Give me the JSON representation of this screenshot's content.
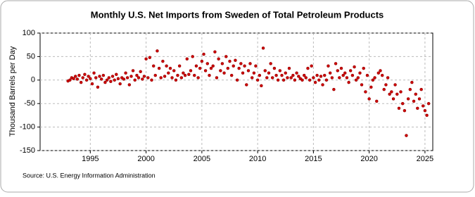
{
  "chart_data": {
    "type": "scatter",
    "title": "Monthly U.S. Net Imports from Sweden of Total Petroleum Products",
    "y_label": "Thousand Barrels per Day",
    "source": "Source: U.S. Energy Information Administration",
    "xlim": [
      1990.5,
      2025.7
    ],
    "xticks": [
      1995,
      2000,
      2005,
      2010,
      2015,
      2020,
      2025
    ],
    "ylim": [
      -150,
      100
    ],
    "yticks": [
      -150,
      -100,
      -50,
      0,
      50,
      100
    ],
    "grid": true,
    "series": [
      {
        "color": "#cc0000",
        "x": [
          1993,
          1993.17,
          1993.33,
          1993.5,
          1993.67,
          1993.83,
          1994,
          1994.17,
          1994.33,
          1994.5,
          1994.67,
          1994.83,
          1995,
          1995.17,
          1995.33,
          1995.5,
          1995.67,
          1995.83,
          1996,
          1996.17,
          1996.33,
          1996.5,
          1996.67,
          1996.83,
          1997,
          1997.17,
          1997.33,
          1997.5,
          1997.67,
          1997.83,
          1998,
          1998.17,
          1998.33,
          1998.5,
          1998.67,
          1998.83,
          1999,
          1999.17,
          1999.33,
          1999.5,
          1999.67,
          1999.83,
          2000,
          2000.17,
          2000.33,
          2000.5,
          2000.67,
          2000.83,
          2001,
          2001.17,
          2001.33,
          2001.5,
          2001.67,
          2001.83,
          2002,
          2002.17,
          2002.33,
          2002.5,
          2002.67,
          2002.83,
          2003,
          2003.17,
          2003.33,
          2003.5,
          2003.67,
          2003.83,
          2004,
          2004.17,
          2004.33,
          2004.5,
          2004.67,
          2004.83,
          2005,
          2005.17,
          2005.33,
          2005.5,
          2005.67,
          2005.83,
          2006,
          2006.17,
          2006.33,
          2006.5,
          2006.67,
          2006.83,
          2007,
          2007.17,
          2007.33,
          2007.5,
          2007.67,
          2007.83,
          2008,
          2008.17,
          2008.33,
          2008.5,
          2008.67,
          2008.83,
          2009,
          2009.17,
          2009.33,
          2009.5,
          2009.67,
          2009.83,
          2010,
          2010.17,
          2010.33,
          2010.5,
          2010.67,
          2010.83,
          2011,
          2011.17,
          2011.33,
          2011.5,
          2011.67,
          2011.83,
          2012,
          2012.17,
          2012.33,
          2012.5,
          2012.67,
          2012.83,
          2013,
          2013.17,
          2013.33,
          2013.5,
          2013.67,
          2013.83,
          2014,
          2014.17,
          2014.33,
          2014.5,
          2014.67,
          2014.83,
          2015,
          2015.17,
          2015.33,
          2015.5,
          2015.67,
          2015.83,
          2016,
          2016.17,
          2016.33,
          2016.5,
          2016.67,
          2016.83,
          2017,
          2017.17,
          2017.33,
          2017.5,
          2017.67,
          2017.83,
          2018,
          2018.17,
          2018.33,
          2018.5,
          2018.67,
          2018.83,
          2019,
          2019.17,
          2019.33,
          2019.5,
          2019.67,
          2019.83,
          2020,
          2020.17,
          2020.33,
          2020.5,
          2020.67,
          2020.83,
          2021,
          2021.17,
          2021.33,
          2021.5,
          2021.67,
          2021.83,
          2022,
          2022.17,
          2022.33,
          2022.5,
          2022.67,
          2022.83,
          2023,
          2023.17,
          2023.33,
          2023.5,
          2023.67,
          2023.83,
          2024,
          2024.17,
          2024.33,
          2024.5,
          2024.67,
          2024.83,
          2025,
          2025.17,
          2025.33
        ],
        "values": [
          -2,
          0,
          5,
          3,
          8,
          2,
          10,
          -5,
          5,
          12,
          0,
          8,
          3,
          -8,
          15,
          5,
          -15,
          8,
          2,
          10,
          -5,
          0,
          5,
          -3,
          8,
          0,
          12,
          3,
          -8,
          5,
          2,
          15,
          5,
          -10,
          8,
          20,
          0,
          10,
          5,
          18,
          2,
          8,
          45,
          5,
          48,
          0,
          30,
          10,
          62,
          25,
          5,
          40,
          8,
          30,
          15,
          25,
          5,
          20,
          0,
          10,
          30,
          5,
          15,
          10,
          45,
          12,
          20,
          50,
          10,
          30,
          5,
          25,
          40,
          55,
          20,
          35,
          10,
          25,
          30,
          60,
          5,
          45,
          20,
          35,
          15,
          50,
          25,
          40,
          10,
          30,
          42,
          0,
          25,
          35,
          15,
          30,
          -10,
          20,
          35,
          5,
          15,
          30,
          0,
          10,
          -12,
          68,
          20,
          5,
          15,
          35,
          5,
          25,
          10,
          0,
          20,
          10,
          0,
          15,
          5,
          25,
          5,
          10,
          0,
          15,
          8,
          3,
          0,
          10,
          5,
          25,
          0,
          30,
          5,
          -5,
          10,
          0,
          8,
          -10,
          10,
          0,
          30,
          15,
          5,
          -20,
          35,
          20,
          5,
          25,
          10,
          15,
          5,
          -5,
          20,
          10,
          28,
          0,
          5,
          15,
          -10,
          25,
          -25,
          10,
          -40,
          -15,
          0,
          5,
          -45,
          15,
          20,
          10,
          -20,
          -10,
          5,
          -30,
          -25,
          -40,
          -10,
          -30,
          -60,
          -25,
          -50,
          -65,
          -118,
          -40,
          -20,
          -5,
          -45,
          -30,
          -60,
          -40,
          -20,
          -55,
          -65,
          -75,
          -50
        ]
      }
    ]
  }
}
